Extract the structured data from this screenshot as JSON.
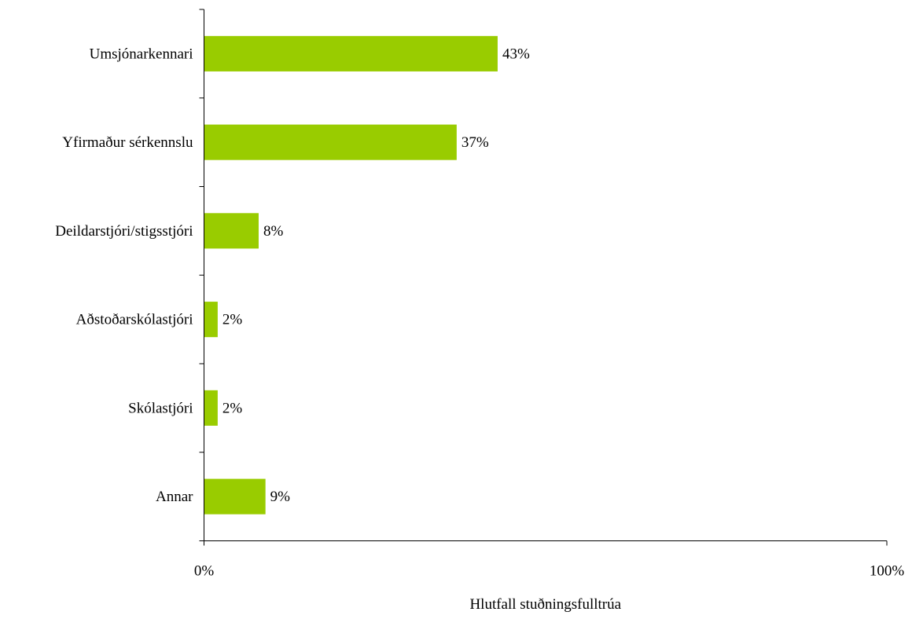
{
  "chart_data": {
    "type": "bar",
    "orientation": "horizontal",
    "categories": [
      "Umsjónarkennari",
      "Yfirmaður sérkennslu",
      "Deildarstjóri/stigsstjóri",
      "Aðstoðarskólastjóri",
      "Skólastjóri",
      "Annar"
    ],
    "values": [
      43,
      37,
      8,
      2,
      2,
      9
    ],
    "data_labels": [
      "43%",
      "37%",
      "8%",
      "2%",
      "2%",
      "9%"
    ],
    "xlabel": "Hlutfall stuðningsfulltrúa",
    "ylabel": "",
    "xlim": [
      0,
      100
    ],
    "x_ticks": [
      0,
      100
    ],
    "x_tick_labels": [
      "0%",
      "100%"
    ],
    "grid": false,
    "legend": "none",
    "bar_color": "#99CC00"
  }
}
